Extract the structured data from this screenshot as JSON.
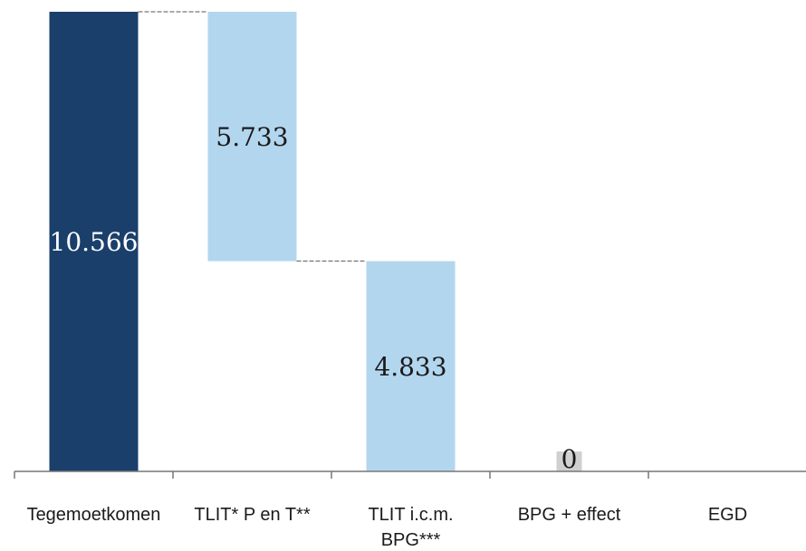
{
  "chart_data": {
    "type": "bar",
    "subtype": "waterfall",
    "categories": [
      "Tegemoetkomen",
      "TLIT* P en T**",
      "TLIT i.c.m. BPG***",
      "BPG + effect",
      "EGD"
    ],
    "category_lines": [
      [
        "Tegemoetkomen"
      ],
      [
        "TLIT* P en T**"
      ],
      [
        "TLIT i.c.m.",
        "BPG***"
      ],
      [
        "BPG + effect"
      ],
      [
        "EGD"
      ]
    ],
    "bars": [
      {
        "category": "Tegemoetkomen",
        "start": 0,
        "end": 10566,
        "label": "10.566",
        "color": "#1b3f6b",
        "label_color": "#ffffff"
      },
      {
        "category": "TLIT* P en T**",
        "start": 4833,
        "end": 10566,
        "label": "5.733",
        "color": "#b3d6ef",
        "label_color": "#1a1a1a"
      },
      {
        "category": "TLIT i.c.m. BPG***",
        "start": 0,
        "end": 4833,
        "label": "4.833",
        "color": "#b3d6ef",
        "label_color": "#1a1a1a"
      },
      {
        "category": "BPG + effect",
        "start": 0,
        "end": 0,
        "label": "0",
        "color": "#d0d0d0",
        "label_color": "#1a1a1a"
      },
      {
        "category": "EGD",
        "start": 0,
        "end": 0,
        "label": "",
        "color": "#b3d6ef",
        "label_color": "#1a1a1a"
      }
    ],
    "connectors": [
      {
        "from": 0,
        "to": 1,
        "value": 10566
      },
      {
        "from": 1,
        "to": 2,
        "value": 4833
      }
    ],
    "ylim": [
      0,
      10566
    ],
    "grid": false,
    "legend": "none",
    "axis_color": "#777777"
  }
}
